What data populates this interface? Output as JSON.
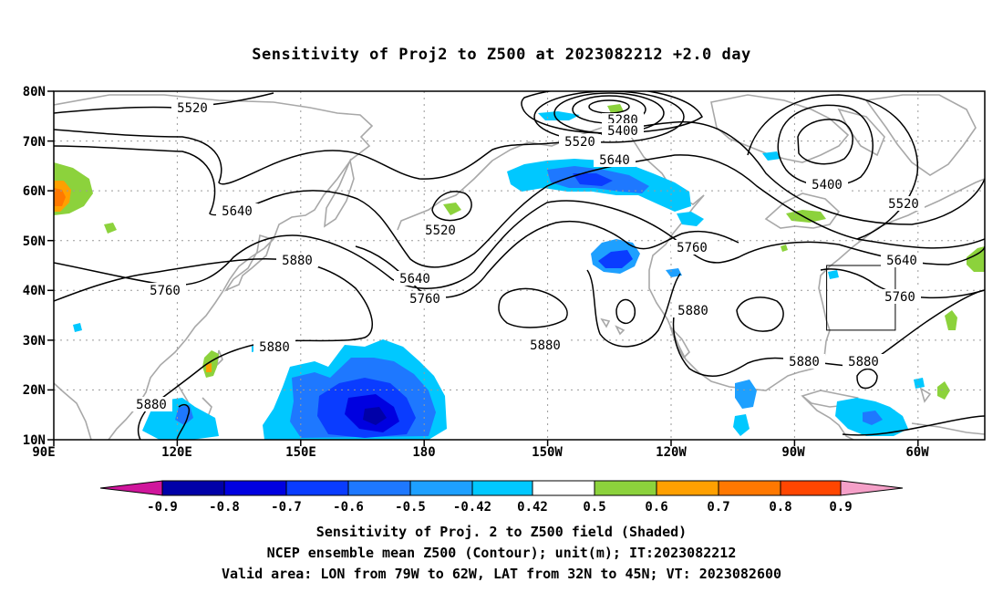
{
  "title": "Sensitivity of Proj2 to Z500 at 2023082212 +2.0 day",
  "map": {
    "lat_labels": [
      "80N",
      "70N",
      "60N",
      "50N",
      "40N",
      "30N",
      "20N",
      "10N"
    ],
    "lon_labels": [
      "90E",
      "120E",
      "150E",
      "180",
      "150W",
      "120W",
      "90W",
      "60W"
    ],
    "contour_labels": [
      {
        "id": "c5520a",
        "text": "5520"
      },
      {
        "id": "c5280",
        "text": "5280"
      },
      {
        "id": "c5400a",
        "text": "5400"
      },
      {
        "id": "c5520b",
        "text": "5520"
      },
      {
        "id": "c5640a",
        "text": "5640"
      },
      {
        "id": "c5640b",
        "text": "5640"
      },
      {
        "id": "c5520c",
        "text": "5520"
      },
      {
        "id": "c5400b",
        "text": "5400"
      },
      {
        "id": "c5520d",
        "text": "5520"
      },
      {
        "id": "c5880a",
        "text": "5880"
      },
      {
        "id": "c5760a",
        "text": "5760"
      },
      {
        "id": "c5640c",
        "text": "5640"
      },
      {
        "id": "c5760b",
        "text": "5760"
      },
      {
        "id": "c5760c",
        "text": "5760"
      },
      {
        "id": "c5640d",
        "text": "5640"
      },
      {
        "id": "c5760d",
        "text": "5760"
      },
      {
        "id": "c5880b",
        "text": "5880"
      },
      {
        "id": "c5880c",
        "text": "5880"
      },
      {
        "id": "c5880d",
        "text": "5880"
      },
      {
        "id": "c5880e",
        "text": "5880"
      },
      {
        "id": "c5880f",
        "text": "5880"
      },
      {
        "id": "c5880g",
        "text": "5880"
      }
    ],
    "valid_area": {
      "lon_from": "79W",
      "lon_to": "62W",
      "lat_from": "32N",
      "lat_to": "45N"
    }
  },
  "colorbar": {
    "labels": [
      "-0.9",
      "-0.8",
      "-0.7",
      "-0.6",
      "-0.5",
      "-0.42",
      "0.42",
      "0.5",
      "0.6",
      "0.7",
      "0.8",
      "0.9"
    ],
    "colors": [
      "#d0169c",
      "#0000a8",
      "#0000e0",
      "#0a3cff",
      "#1e78ff",
      "#1ea0ff",
      "#00c8ff",
      "#ffffff",
      "#8cd23c",
      "#ffa000",
      "#ff7800",
      "#ff4600",
      "#ff1e00",
      "#f5a0c8"
    ]
  },
  "captions": {
    "line1": "Sensitivity of Proj. 2 to Z500 field (Shaded)",
    "line2": "NCEP ensemble mean Z500 (Contour); unit(m); IT:2023082212",
    "line3": "Valid area: LON from 79W to 62W, LAT from 32N to 45N; VT: 2023082600"
  }
}
